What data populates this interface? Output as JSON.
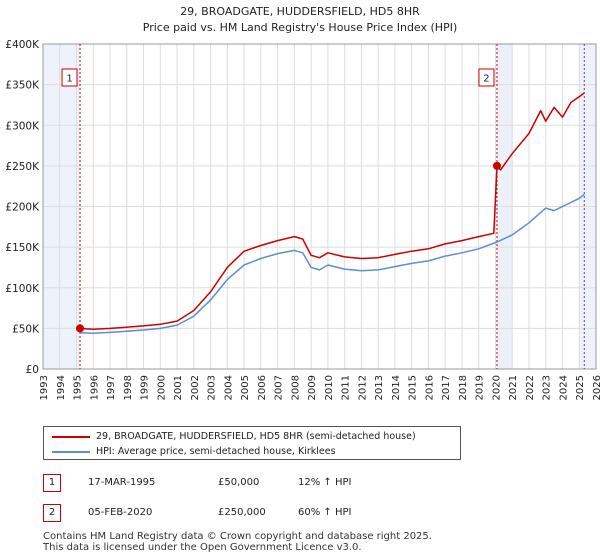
{
  "chart_data": {
    "type": "line",
    "title": "29, BROADGATE, HUDDERSFIELD, HD5 8HR",
    "subtitle": "Price paid vs. HM Land Registry's House Price Index (HPI)",
    "ylim": [
      0,
      400000
    ],
    "xlim": [
      1993,
      2026
    ],
    "y_ticks": [
      {
        "value": 0,
        "label": "£0"
      },
      {
        "value": 50000,
        "label": "£50K"
      },
      {
        "value": 100000,
        "label": "£100K"
      },
      {
        "value": 150000,
        "label": "£150K"
      },
      {
        "value": 200000,
        "label": "£200K"
      },
      {
        "value": 250000,
        "label": "£250K"
      },
      {
        "value": 300000,
        "label": "£300K"
      },
      {
        "value": 350000,
        "label": "£350K"
      },
      {
        "value": 400000,
        "label": "£400K"
      }
    ],
    "x_ticks": [
      "1993",
      "1994",
      "1995",
      "1996",
      "1997",
      "1998",
      "1999",
      "2000",
      "2001",
      "2002",
      "2003",
      "2004",
      "2005",
      "2006",
      "2007",
      "2008",
      "2009",
      "2010",
      "2011",
      "2012",
      "2013",
      "2014",
      "2015",
      "2016",
      "2017",
      "2018",
      "2019",
      "2020",
      "2021",
      "2022",
      "2023",
      "2024",
      "2025",
      "2026"
    ],
    "series": [
      {
        "name": "29, BROADGATE, HUDDERSFIELD, HD5 8HR (semi-detached house)",
        "color": "#cc0000",
        "points": [
          [
            1995.21,
            50000
          ],
          [
            1995.5,
            49500
          ],
          [
            1996,
            49000
          ],
          [
            1997,
            50000
          ],
          [
            1998,
            51500
          ],
          [
            1999,
            53000
          ],
          [
            2000,
            55000
          ],
          [
            2001,
            59000
          ],
          [
            2002,
            72000
          ],
          [
            2003,
            95000
          ],
          [
            2004,
            125000
          ],
          [
            2005,
            145000
          ],
          [
            2006,
            152000
          ],
          [
            2007,
            158000
          ],
          [
            2008,
            163000
          ],
          [
            2008.5,
            160000
          ],
          [
            2009,
            140000
          ],
          [
            2009.5,
            137000
          ],
          [
            2010,
            143000
          ],
          [
            2011,
            138000
          ],
          [
            2012,
            136000
          ],
          [
            2013,
            137000
          ],
          [
            2014,
            141000
          ],
          [
            2015,
            145000
          ],
          [
            2016,
            148000
          ],
          [
            2017,
            154000
          ],
          [
            2018,
            158000
          ],
          [
            2019,
            163000
          ],
          [
            2019.9,
            167000
          ],
          [
            2020.09,
            250000
          ],
          [
            2020.3,
            245000
          ],
          [
            2021,
            265000
          ],
          [
            2022,
            290000
          ],
          [
            2022.7,
            318000
          ],
          [
            2023,
            305000
          ],
          [
            2023.5,
            322000
          ],
          [
            2024,
            310000
          ],
          [
            2024.5,
            328000
          ],
          [
            2025,
            335000
          ],
          [
            2025.3,
            340000
          ]
        ]
      },
      {
        "name": "HPI: Average price, semi-detached house, Kirklees",
        "color": "#5b8fd0",
        "points": [
          [
            1995.21,
            44600
          ],
          [
            1996,
            44000
          ],
          [
            1997,
            45000
          ],
          [
            1998,
            46500
          ],
          [
            1999,
            48000
          ],
          [
            2000,
            50000
          ],
          [
            2001,
            54000
          ],
          [
            2002,
            65000
          ],
          [
            2003,
            85000
          ],
          [
            2004,
            110000
          ],
          [
            2005,
            128000
          ],
          [
            2006,
            136000
          ],
          [
            2007,
            142000
          ],
          [
            2008,
            146000
          ],
          [
            2008.5,
            143000
          ],
          [
            2009,
            125000
          ],
          [
            2009.5,
            122000
          ],
          [
            2010,
            128000
          ],
          [
            2011,
            123000
          ],
          [
            2012,
            121000
          ],
          [
            2013,
            122000
          ],
          [
            2014,
            126000
          ],
          [
            2015,
            130000
          ],
          [
            2016,
            133000
          ],
          [
            2017,
            139000
          ],
          [
            2018,
            143000
          ],
          [
            2019,
            148000
          ],
          [
            2020.09,
            156250
          ],
          [
            2021,
            165000
          ],
          [
            2022,
            180000
          ],
          [
            2023,
            198000
          ],
          [
            2023.5,
            195000
          ],
          [
            2024,
            200000
          ],
          [
            2025,
            210000
          ],
          [
            2025.3,
            215000
          ]
        ]
      }
    ],
    "markers": [
      {
        "label": "1",
        "x": 1995.21,
        "value": 50000
      },
      {
        "label": "2",
        "x": 2020.09,
        "value": 250000
      }
    ]
  },
  "legend": {
    "property": "29, BROADGATE, HUDDERSFIELD, HD5 8HR (semi-detached house)",
    "hpi": "HPI: Average price, semi-detached house, Kirklees"
  },
  "transactions": [
    {
      "num": "1",
      "date": "17-MAR-1995",
      "price": "£50,000",
      "hpi": "12% ↑ HPI"
    },
    {
      "num": "2",
      "date": "05-FEB-2020",
      "price": "£250,000",
      "hpi": "60% ↑ HPI"
    }
  ],
  "footer": {
    "line1": "Contains HM Land Registry data © Crown copyright and database right 2025.",
    "line2": "This data is licensed under the Open Government Licence v3.0."
  },
  "colors": {
    "property": "#cc0000",
    "hpi": "#5b8fd0",
    "highlight": "#dde6f5"
  }
}
